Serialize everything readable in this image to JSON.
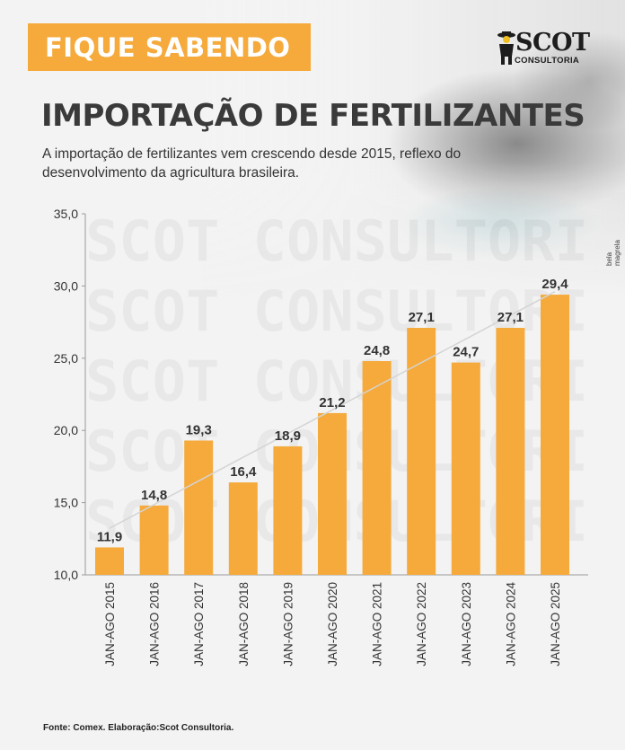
{
  "header": {
    "badge": "FIQUE SABENDO",
    "logo_main": "SCOT",
    "logo_sub": "CONSULTORIA",
    "title": "IMPORTAÇÃO DE FERTILIZANTES",
    "subtitle_line1": "A importação de fertilizantes vem crescendo desde 2015, reflexo do",
    "subtitle_line2": "desenvolvimento da agricultura brasileira."
  },
  "photo_credit": "bela magrela",
  "watermark_text": "SCOT CONSULTORIA",
  "footer": {
    "source": "Fonte: Comex. Elaboração:Scot Consultoria."
  },
  "colors": {
    "bar": "#f5aa3b",
    "badge": "#f5aa3b",
    "trend": "#d4d4d4",
    "text": "#333333"
  },
  "chart_data": {
    "type": "bar",
    "categories": [
      "JAN-AGO 2015",
      "JAN-AGO 2016",
      "JAN-AGO 2017",
      "JAN-AGO 2018",
      "JAN-AGO 2019",
      "JAN-AGO 2020",
      "JAN-AGO 2021",
      "JAN-AGO 2022",
      "JAN-AGO 2023",
      "JAN-AGO 2024",
      "JAN-AGO 2025"
    ],
    "values": [
      11.9,
      14.8,
      19.3,
      16.4,
      18.9,
      21.2,
      24.8,
      27.1,
      24.7,
      27.1,
      29.4
    ],
    "value_labels": [
      "11,9",
      "14,8",
      "19,3",
      "16,4",
      "18,9",
      "21,2",
      "24,8",
      "27,1",
      "24,7",
      "27,1",
      "29,4"
    ],
    "yticks": [
      10,
      15,
      20,
      25,
      30,
      35
    ],
    "ytick_labels": [
      "10,0",
      "15,0",
      "20,0",
      "25,0",
      "30,0",
      "35,0"
    ],
    "ylim": [
      10,
      35
    ],
    "trendline": true,
    "grid": false,
    "title": "",
    "xlabel": "",
    "ylabel": ""
  }
}
